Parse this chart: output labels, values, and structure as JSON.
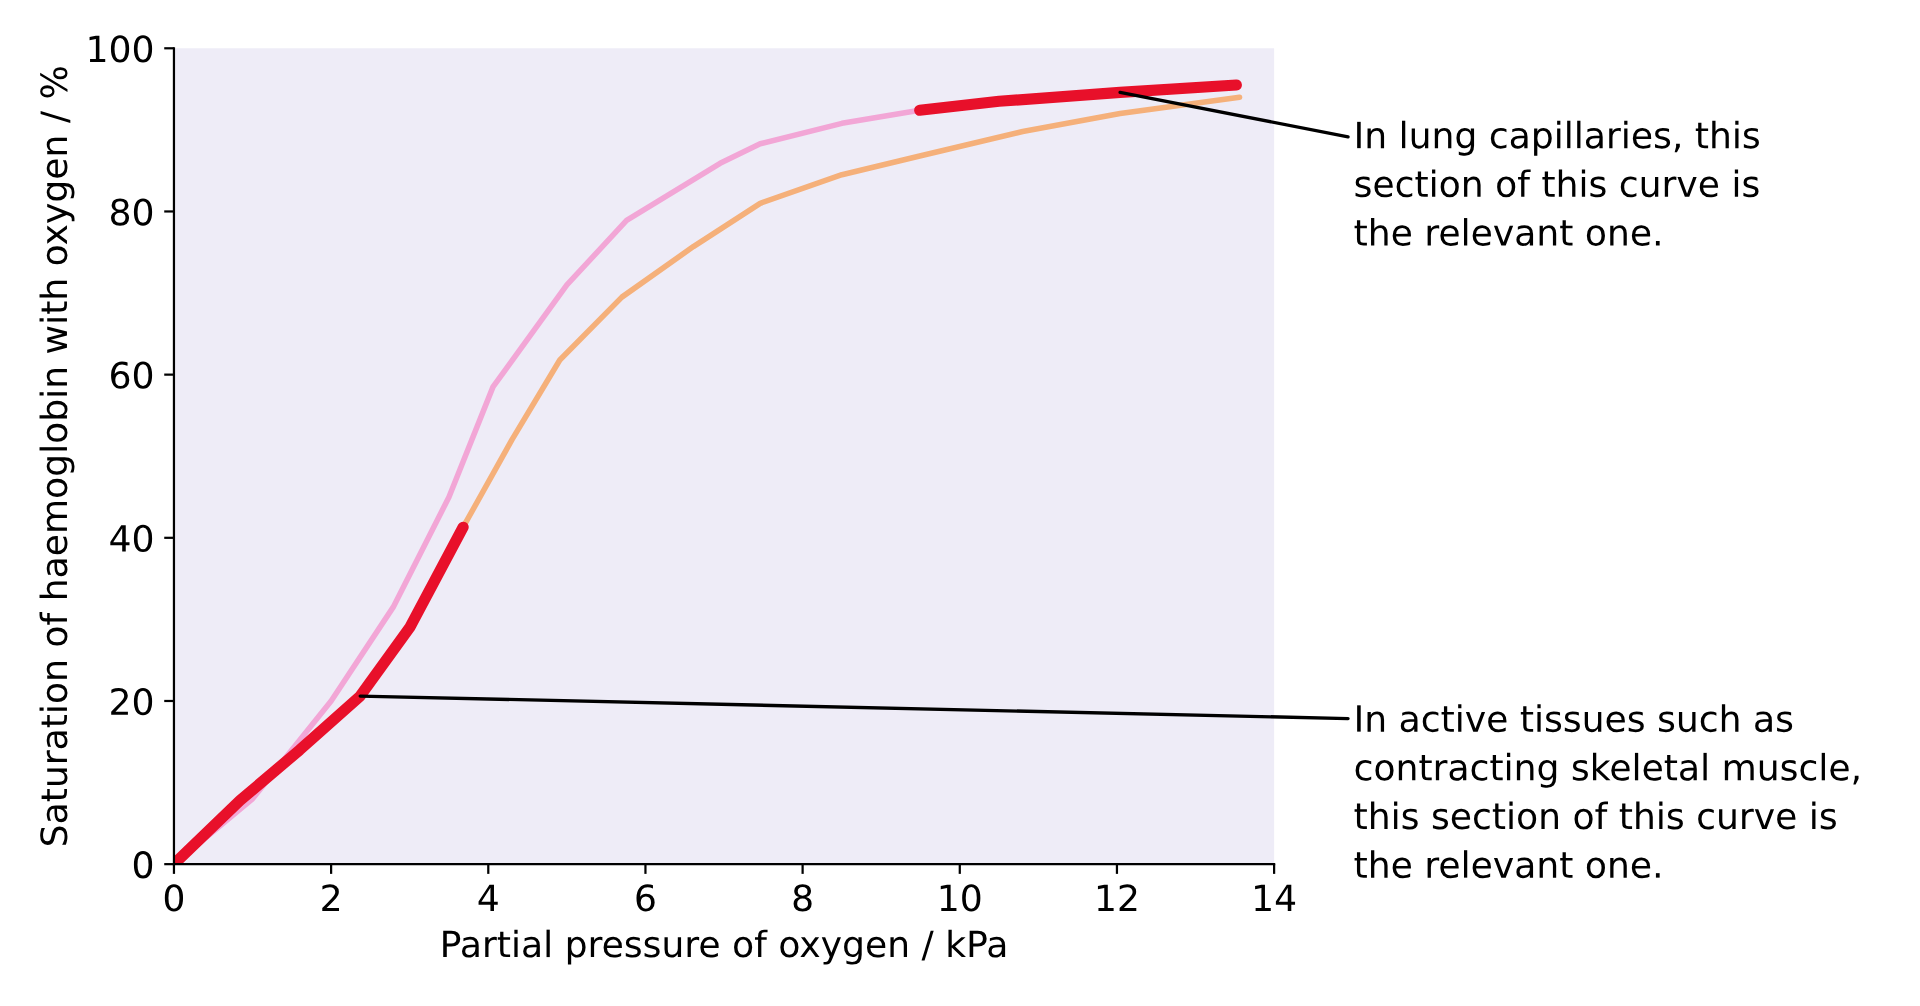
{
  "chart_data": {
    "type": "line",
    "xlabel": "Partial pressure of oxygen / kPa",
    "ylabel": "Saturation of haemoglobin with oxygen / %",
    "xlim": [
      0,
      14
    ],
    "ylim": [
      0,
      100
    ],
    "xticks": [
      0,
      2,
      4,
      6,
      8,
      10,
      12,
      14
    ],
    "yticks": [
      0,
      20,
      40,
      60,
      80,
      100
    ],
    "grid": false,
    "legend": false,
    "marker": "none",
    "line_style": "solid",
    "series": [
      {
        "color": "#f2a6d6",
        "x": [
          0,
          1,
          2,
          2.79,
          3.5,
          4.06,
          5,
          5.76,
          6.95,
          7.46,
          8.5,
          9.49
        ],
        "values": [
          0,
          8,
          20,
          31.5,
          45,
          58.5,
          71,
          78.9,
          85.9,
          88.3,
          90.8,
          92.4
        ]
      },
      {
        "color": "#e8102a",
        "x": [
          9.49,
          10.5,
          12.04,
          13.52
        ],
        "values": [
          92.4,
          93.5,
          94.6,
          95.5
        ]
      },
      {
        "color": "#f5b07a",
        "x": [
          3.68,
          4.3,
          4.91,
          5.7,
          6.61,
          7.46,
          8.5,
          9.49,
          10.8,
          12.04,
          13.56
        ],
        "values": [
          41.3,
          52,
          61.8,
          69.5,
          75.7,
          81,
          84.5,
          86.8,
          89.8,
          92,
          94
        ]
      },
      {
        "color": "#e8102a",
        "x": [
          0,
          0.84,
          1.6,
          2.37,
          3,
          3.68
        ],
        "values": [
          0,
          7.8,
          14,
          20.6,
          29,
          41.3
        ]
      }
    ],
    "annotations": [
      {
        "text": "In lung capillaries, this\nsection of this curve is\nthe relevant one.",
        "x": 12.04,
        "y": 94.6
      },
      {
        "text": "In active tissues such as\ncontracting skeletal muscle,\nthis section of this curve is\nthe relevant one.",
        "x": 2.37,
        "y": 20.6
      }
    ]
  }
}
